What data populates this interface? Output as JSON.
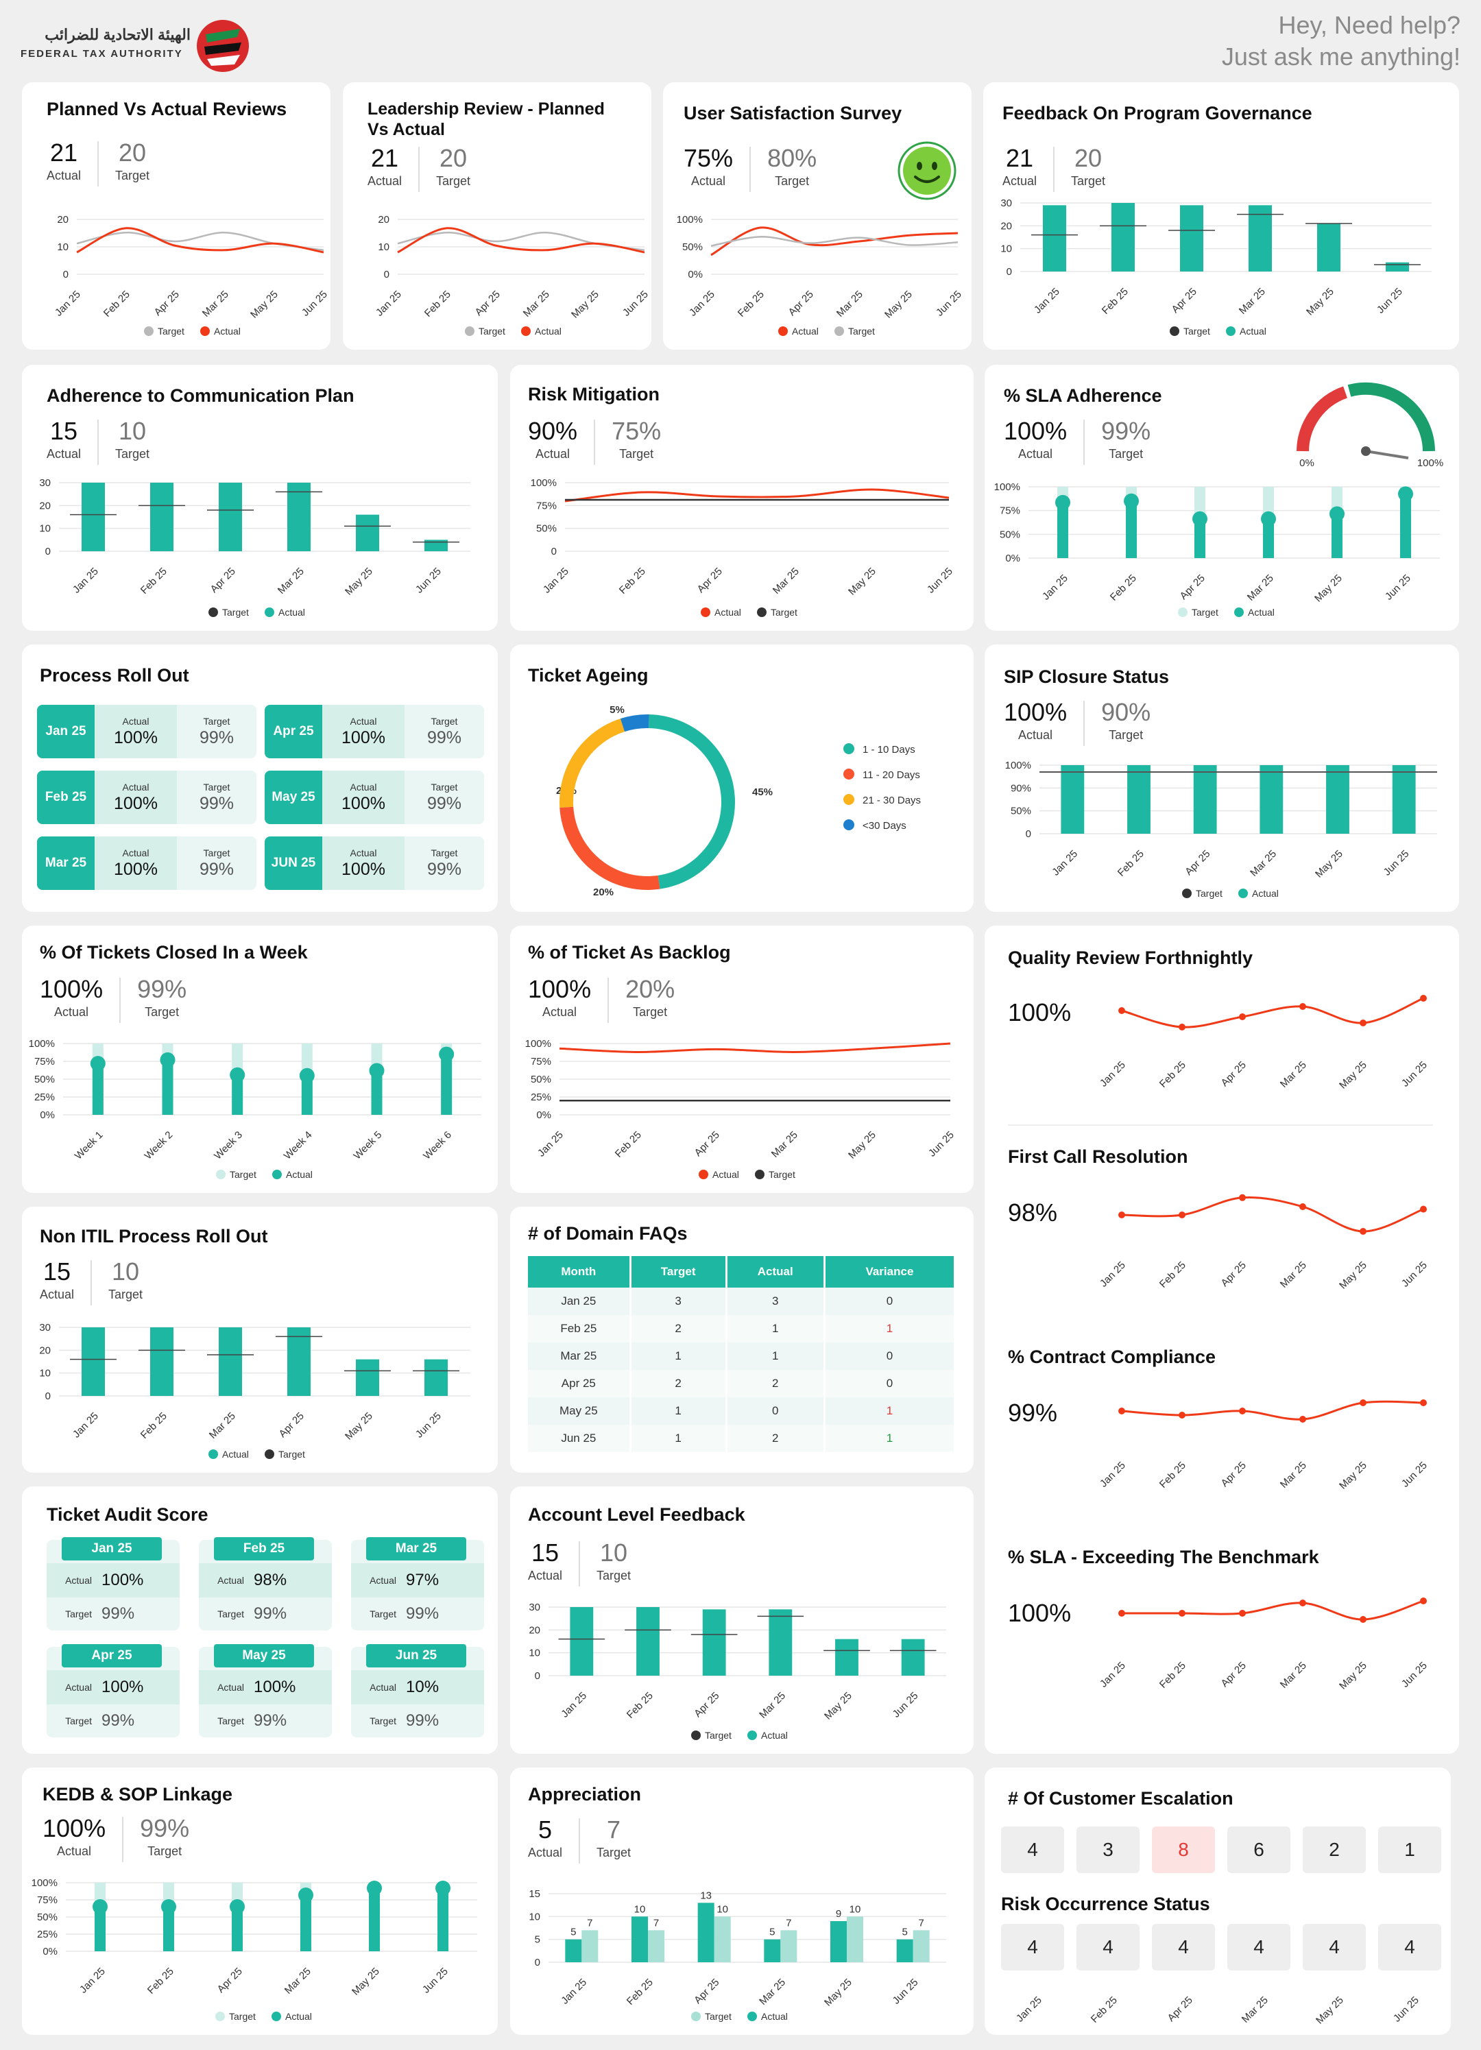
{
  "header": {
    "logo_arabic": "الهيئة الاتحادية للضرائب",
    "logo_english": "FEDERAL TAX AUTHORITY",
    "help_line1": "Hey, Need help?",
    "help_line2": "Just ask me anything!"
  },
  "labels": {
    "actual": "Actual",
    "target": "Target"
  },
  "months_a": [
    "Jan 25",
    "Feb 25",
    "Apr 25",
    "Mar 25",
    "May 25",
    "Jun 25"
  ],
  "months_b": [
    "Jan 25",
    "Feb 25",
    "Mar 25",
    "Apr 25",
    "May 25",
    "Jun 25"
  ],
  "weeks": [
    "Week 1",
    "Week 2",
    "Week 3",
    "Week 4",
    "Week 5",
    "Week 6"
  ],
  "colors": {
    "teal": "#1eb7a1",
    "teal_light": "#cdeee8",
    "red": "#f03a17",
    "grey": "#b8b8b8",
    "dark": "#333333"
  },
  "planned_reviews": {
    "title": "Planned Vs Actual Reviews",
    "actual": "21",
    "target": "20",
    "chart_data": {
      "type": "line",
      "x": [
        "Jan 25",
        "Feb 25",
        "Apr 25",
        "Mar 25",
        "May 25",
        "Jun 25"
      ],
      "yticks": [
        "20",
        "10",
        "0"
      ],
      "ylim": [
        0,
        25
      ],
      "series": [
        {
          "name": "Target",
          "values": [
            14,
            19,
            15,
            19,
            14,
            11
          ]
        },
        {
          "name": "Actual",
          "values": [
            10,
            21,
            13,
            11,
            14,
            10
          ]
        }
      ],
      "legend": [
        "Target",
        "Actual"
      ]
    }
  },
  "leadership_review": {
    "title": "Leadership Review - Planned Vs Actual",
    "actual": "21",
    "target": "20",
    "chart_data": {
      "type": "line",
      "x": [
        "Jan 25",
        "Feb 25",
        "Apr 25",
        "Mar 25",
        "May 25",
        "Jun 25"
      ],
      "yticks": [
        "20",
        "10",
        "0"
      ],
      "ylim": [
        0,
        25
      ],
      "series": [
        {
          "name": "Target",
          "values": [
            14,
            19,
            15,
            19,
            14,
            11
          ]
        },
        {
          "name": "Actual",
          "values": [
            10,
            21,
            13,
            11,
            14,
            10
          ]
        }
      ],
      "legend": [
        "Target",
        "Actual"
      ]
    }
  },
  "user_satisfaction": {
    "title": "User Satisfaction Survey",
    "actual": "75%",
    "target": "80%",
    "chart_data": {
      "type": "line",
      "x": [
        "Jan 25",
        "Feb 25",
        "Apr 25",
        "Mar 25",
        "May 25",
        "Jun 25"
      ],
      "yticks": [
        "100%",
        "50%",
        "0%"
      ],
      "ylim": [
        0,
        120
      ],
      "series": [
        {
          "name": "Actual",
          "values": [
            42,
            102,
            65,
            72,
            85,
            90
          ]
        },
        {
          "name": "Target",
          "values": [
            62,
            82,
            68,
            80,
            64,
            70
          ]
        }
      ],
      "legend": [
        "Actual",
        "Target"
      ]
    }
  },
  "feedback_governance": {
    "title": "Feedback On Program Governance",
    "actual": "21",
    "target": "20",
    "chart_data": {
      "type": "bar",
      "x": [
        "Jan 25",
        "Feb 25",
        "Apr 25",
        "Mar 25",
        "May 25",
        "Jun 25"
      ],
      "yticks": [
        "30",
        "20",
        "10",
        "0"
      ],
      "ylim": [
        0,
        30
      ],
      "series": [
        {
          "name": "Actual",
          "values": [
            29,
            30,
            29,
            29,
            21,
            4
          ]
        },
        {
          "name": "Target",
          "values": [
            16,
            20,
            18,
            25,
            21,
            3
          ]
        }
      ],
      "legend": [
        "Target",
        "Actual"
      ]
    }
  },
  "communication_plan": {
    "title": "Adherence to Communication Plan",
    "actual": "15",
    "target": "10",
    "chart_data": {
      "type": "bar",
      "x": [
        "Jan 25",
        "Feb 25",
        "Apr 25",
        "Mar 25",
        "May 25",
        "Jun 25"
      ],
      "yticks": [
        "30",
        "20",
        "10",
        "0"
      ],
      "ylim": [
        0,
        30
      ],
      "series": [
        {
          "name": "Actual",
          "values": [
            30,
            30,
            30,
            30,
            16,
            5
          ]
        },
        {
          "name": "Target",
          "values": [
            16,
            20,
            18,
            26,
            11,
            4
          ]
        }
      ],
      "legend": [
        "Target",
        "Actual"
      ]
    }
  },
  "risk_mitigation": {
    "title": "Risk Mitigation",
    "actual": "90%",
    "target": "75%",
    "chart_data": {
      "type": "line",
      "x": [
        "Jan 25",
        "Feb 25",
        "Apr 25",
        "Mar 25",
        "May 25",
        "Jun 25"
      ],
      "yticks": [
        "100%",
        "75%",
        "50%",
        "0"
      ],
      "ylim": [
        0,
        100
      ],
      "series": [
        {
          "name": "Actual",
          "values": [
            73,
            86,
            80,
            80,
            90,
            78
          ]
        },
        {
          "name": "Target",
          "values": [
            75,
            75,
            75,
            75,
            75,
            75
          ]
        }
      ],
      "legend": [
        "Actual",
        "Target"
      ]
    }
  },
  "sla_adherence": {
    "title": "% SLA Adherence",
    "actual": "100%",
    "target": "99%",
    "gauge_min": "0%",
    "gauge_max": "100%",
    "chart_data": {
      "type": "lollipop",
      "x": [
        "Jan 25",
        "Feb 25",
        "Apr 25",
        "Mar 25",
        "May 25",
        "Jun 25"
      ],
      "yticks": [
        "100%",
        "75%",
        "50%",
        "0%"
      ],
      "ylim": [
        0,
        100
      ],
      "series": [
        {
          "name": "Actual",
          "values": [
            78,
            80,
            55,
            55,
            62,
            90
          ]
        },
        {
          "name": "Target",
          "values": [
            100,
            100,
            100,
            100,
            100,
            100
          ]
        }
      ],
      "legend": [
        "Target",
        "Actual"
      ]
    }
  },
  "process_rollout": {
    "title": "Process Roll Out",
    "items": [
      {
        "month": "Jan 25",
        "actual": "100%",
        "target": "99%"
      },
      {
        "month": "Apr 25",
        "actual": "100%",
        "target": "99%"
      },
      {
        "month": "Feb 25",
        "actual": "100%",
        "target": "99%"
      },
      {
        "month": "May 25",
        "actual": "100%",
        "target": "99%"
      },
      {
        "month": "Mar 25",
        "actual": "100%",
        "target": "99%"
      },
      {
        "month": "JUN 25",
        "actual": "100%",
        "target": "99%"
      }
    ]
  },
  "ticket_ageing": {
    "title": "Ticket Ageing",
    "chart_data": {
      "type": "pie",
      "slices": [
        {
          "label": "1 - 10 Days",
          "value": 45,
          "text": "45%",
          "color": "#1eb7a1"
        },
        {
          "label": "11 - 20 Days",
          "value": 25,
          "text": "25%",
          "color": "#f8542f"
        },
        {
          "label": "21 - 30 Days",
          "value": 20,
          "text": "20%",
          "color": "#fbb21b"
        },
        {
          "label": "<30 Days",
          "value": 5,
          "text": "5%",
          "color": "#1e7fcf"
        }
      ]
    }
  },
  "sip_closure": {
    "title": "SIP Closure Status",
    "actual": "100%",
    "target": "90%",
    "chart_data": {
      "type": "bar",
      "x": [
        "Jan 25",
        "Feb 25",
        "Apr 25",
        "Mar 25",
        "May 25",
        "Jun 25"
      ],
      "yticks": [
        "100%",
        "90%",
        "50%",
        "0"
      ],
      "ylim": [
        0,
        100
      ],
      "series": [
        {
          "name": "Actual",
          "values": [
            100,
            100,
            100,
            100,
            100,
            100
          ]
        },
        {
          "name": "Target",
          "values": [
            90,
            90,
            90,
            90,
            90,
            90
          ]
        }
      ],
      "legend": [
        "Target",
        "Actual"
      ]
    }
  },
  "tickets_closed_week": {
    "title": "% Of Tickets Closed In a Week",
    "actual": "100%",
    "target": "99%",
    "chart_data": {
      "type": "lollipop",
      "x": [
        "Week 1",
        "Week 2",
        "Week 3",
        "Week 4",
        "Week 5",
        "Week 6"
      ],
      "yticks": [
        "100%",
        "75%",
        "50%",
        "25%",
        "0%"
      ],
      "ylim": [
        0,
        100
      ],
      "series": [
        {
          "name": "Actual",
          "values": [
            72,
            77,
            56,
            55,
            62,
            85
          ]
        },
        {
          "name": "Target",
          "values": [
            100,
            100,
            100,
            100,
            100,
            100
          ]
        }
      ],
      "legend": [
        "Target",
        "Actual"
      ]
    }
  },
  "ticket_backlog": {
    "title": "% of Ticket As Backlog",
    "actual": "100%",
    "target": "20%",
    "chart_data": {
      "type": "line",
      "x": [
        "Jan 25",
        "Feb 25",
        "Apr 25",
        "Mar 25",
        "May 25",
        "Jun 25"
      ],
      "yticks": [
        "100%",
        "75%",
        "50%",
        "25%",
        "0%"
      ],
      "ylim": [
        0,
        100
      ],
      "series": [
        {
          "name": "Actual",
          "values": [
            93,
            88,
            92,
            88,
            93,
            100
          ]
        },
        {
          "name": "Target",
          "values": [
            20,
            20,
            20,
            20,
            20,
            20
          ]
        }
      ],
      "legend": [
        "Actual",
        "Target"
      ]
    }
  },
  "quality_review": {
    "title": "Quality Review Forthnightly",
    "value": "100%",
    "chart_data": {
      "type": "line",
      "x": [
        "Jan 25",
        "Feb 25",
        "Apr 25",
        "Mar 25",
        "May 25",
        "Jun 25"
      ],
      "values": [
        60,
        20,
        45,
        70,
        30,
        90
      ]
    }
  },
  "first_call": {
    "title": "First Call Resolution",
    "value": "98%",
    "chart_data": {
      "type": "line",
      "x": [
        "Jan 25",
        "Feb 25",
        "Apr 25",
        "Mar 25",
        "May 25",
        "Jun 25"
      ],
      "values": [
        50,
        50,
        92,
        70,
        10,
        64
      ]
    }
  },
  "contract_compliance": {
    "title": "% Contract Compliance",
    "value": "99%",
    "chart_data": {
      "type": "line",
      "x": [
        "Jan 25",
        "Feb 25",
        "Apr 25",
        "Mar 25",
        "May 25",
        "Jun 25"
      ],
      "values": [
        60,
        50,
        60,
        40,
        80,
        80
      ]
    }
  },
  "sla_benchmark": {
    "title": "% SLA - Exceeding The Benchmark",
    "value": "100%",
    "chart_data": {
      "type": "line",
      "x": [
        "Jan 25",
        "Feb 25",
        "Apr 25",
        "Mar 25",
        "May 25",
        "Jun 25"
      ],
      "values": [
        55,
        55,
        55,
        80,
        40,
        85
      ]
    }
  },
  "non_itil": {
    "title": "Non ITIL Process Roll Out",
    "actual": "15",
    "target": "10",
    "chart_data": {
      "type": "bar",
      "x": [
        "Jan 25",
        "Feb 25",
        "Mar 25",
        "Apr 25",
        "May 25",
        "Jun 25"
      ],
      "yticks": [
        "30",
        "20",
        "10",
        "0"
      ],
      "ylim": [
        0,
        30
      ],
      "series": [
        {
          "name": "Actual",
          "values": [
            30,
            30,
            30,
            30,
            16,
            16
          ]
        },
        {
          "name": "Target",
          "values": [
            16,
            20,
            18,
            26,
            11,
            11
          ]
        }
      ],
      "legend": [
        "Actual",
        "Target"
      ]
    }
  },
  "domain_faqs": {
    "title": "# of Domain FAQs",
    "columns": [
      "Month",
      "Target",
      "Actual",
      "Variance"
    ],
    "rows": [
      [
        "Jan 25",
        "3",
        "3",
        "0"
      ],
      [
        "Feb 25",
        "2",
        "1",
        "1"
      ],
      [
        "Mar 25",
        "1",
        "1",
        "0"
      ],
      [
        "Apr 25",
        "2",
        "2",
        "0"
      ],
      [
        "May 25",
        "1",
        "0",
        "1"
      ],
      [
        "Jun 25",
        "1",
        "2",
        "1"
      ]
    ],
    "variance_colors": [
      "#333333",
      "#e53935",
      "#333333",
      "#333333",
      "#e53935",
      "#1b9e3a"
    ]
  },
  "ticket_audit": {
    "title": "Ticket Audit Score",
    "items": [
      {
        "month": "Jan 25",
        "actual": "100%",
        "target": "99%"
      },
      {
        "month": "Feb 25",
        "actual": "98%",
        "target": "99%"
      },
      {
        "month": "Mar 25",
        "actual": "97%",
        "target": "99%"
      },
      {
        "month": "Apr 25",
        "actual": "100%",
        "target": "99%"
      },
      {
        "month": "May 25",
        "actual": "100%",
        "target": "99%"
      },
      {
        "month": "Jun 25",
        "actual": "10%",
        "target": "99%"
      }
    ]
  },
  "account_feedback": {
    "title": "Account Level Feedback",
    "actual": "15",
    "target": "10",
    "chart_data": {
      "type": "bar",
      "x": [
        "Jan 25",
        "Feb 25",
        "Apr 25",
        "Mar 25",
        "May 25",
        "Jun 25"
      ],
      "yticks": [
        "30",
        "20",
        "10",
        "0"
      ],
      "ylim": [
        0,
        30
      ],
      "series": [
        {
          "name": "Actual",
          "values": [
            30,
            30,
            29,
            29,
            16,
            16
          ]
        },
        {
          "name": "Target",
          "values": [
            16,
            20,
            18,
            26,
            11,
            11
          ]
        }
      ],
      "legend": [
        "Target",
        "Actual"
      ]
    }
  },
  "kedb": {
    "title": "KEDB & SOP Linkage",
    "actual": "100%",
    "target": "99%",
    "chart_data": {
      "type": "lollipop",
      "x": [
        "Jan 25",
        "Feb 25",
        "Apr 25",
        "Mar 25",
        "May 25",
        "Jun 25"
      ],
      "yticks": [
        "100%",
        "75%",
        "50%",
        "25%",
        "0%"
      ],
      "ylim": [
        0,
        100
      ],
      "series": [
        {
          "name": "Actual",
          "values": [
            65,
            65,
            65,
            82,
            92,
            92
          ]
        },
        {
          "name": "Target",
          "values": [
            100,
            100,
            100,
            100,
            100,
            100
          ]
        }
      ],
      "legend": [
        "Target",
        "Actual"
      ]
    }
  },
  "appreciation": {
    "title": "Appreciation",
    "actual": "5",
    "target": "7",
    "chart_data": {
      "type": "grouped-bar",
      "x": [
        "Jan 25",
        "Feb 25",
        "Apr 25",
        "Mar 25",
        "May 25",
        "Jun 25"
      ],
      "yticks": [
        "15",
        "10",
        "5",
        "0"
      ],
      "ylim": [
        0,
        15
      ],
      "series": [
        {
          "name": "Actual",
          "values": [
            5,
            10,
            13,
            5,
            9,
            5
          ]
        },
        {
          "name": "Target",
          "values": [
            7,
            7,
            10,
            7,
            10,
            7
          ]
        }
      ],
      "legend": [
        "Target",
        "Actual"
      ]
    }
  },
  "customer_escalation": {
    "title": "# Of Customer Escalation",
    "values": [
      "4",
      "3",
      "8",
      "6",
      "2",
      "1"
    ],
    "highlight_index": 2
  },
  "risk_occurrence": {
    "title": "Risk Occurrence Status",
    "values": [
      "4",
      "4",
      "4",
      "4",
      "4",
      "4"
    ],
    "months": [
      "Jan 25",
      "Feb 25",
      "Apr 25",
      "Mar 25",
      "May 25",
      "Jun 25"
    ]
  }
}
